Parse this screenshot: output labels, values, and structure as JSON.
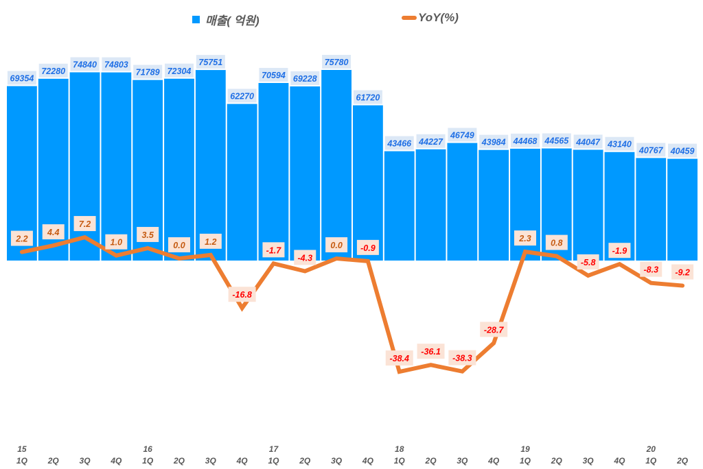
{
  "chart_data": {
    "type": "bar+line",
    "categories": [
      "15 1Q",
      "2Q",
      "3Q",
      "4Q",
      "16 1Q",
      "2Q",
      "3Q",
      "4Q",
      "17 1Q",
      "2Q",
      "3Q",
      "4Q",
      "18 1Q",
      "2Q",
      "3Q",
      "4Q",
      "19 1Q",
      "2Q",
      "3Q",
      "4Q",
      "20 1Q",
      "2Q"
    ],
    "x_years": [
      "15",
      "",
      "",
      "",
      "16",
      "",
      "",
      "",
      "17",
      "",
      "",
      "",
      "18",
      "",
      "",
      "",
      "19",
      "",
      "",
      "",
      "20",
      ""
    ],
    "x_quarters": [
      "1Q",
      "2Q",
      "3Q",
      "4Q",
      "1Q",
      "2Q",
      "3Q",
      "4Q",
      "1Q",
      "2Q",
      "3Q",
      "4Q",
      "1Q",
      "2Q",
      "3Q",
      "4Q",
      "1Q",
      "2Q",
      "3Q",
      "4Q",
      "1Q",
      "2Q"
    ],
    "series": [
      {
        "name": "매출( 억원)",
        "type": "bar",
        "color": "#0099ff",
        "values": [
          69354,
          72280,
          74840,
          74803,
          71789,
          72304,
          75751,
          62270,
          70594,
          69228,
          75780,
          61720,
          43466,
          44227,
          46749,
          43984,
          44468,
          44565,
          44047,
          43140,
          40767,
          40459
        ],
        "labels": [
          "69354",
          "72280",
          "74840",
          "74803",
          "71789",
          "72304",
          "75751",
          "62270",
          "70594",
          "69228",
          "75780",
          "61720",
          "43466",
          "44227",
          "46749",
          "43984",
          "44468",
          "44565",
          "44047",
          "43140",
          "40767",
          "40459"
        ]
      },
      {
        "name": "YoY(%)",
        "type": "line",
        "color": "#ed7d31",
        "values": [
          2.2,
          4.4,
          7.2,
          1.0,
          3.5,
          0.0,
          1.2,
          -16.8,
          -1.7,
          -4.3,
          0.0,
          -0.9,
          -38.4,
          -36.1,
          -38.3,
          -28.7,
          2.3,
          0.8,
          -5.8,
          -1.9,
          -8.3,
          -9.2
        ],
        "labels": [
          "2.2",
          "4.4",
          "7.2",
          "1.0",
          "3.5",
          "0.0",
          "1.2",
          "-16.8",
          "-1.7",
          "-4.3",
          "0.0",
          "-0.9",
          "-38.4",
          "-36.1",
          "-38.3",
          "-28.7",
          "2.3",
          "0.8",
          "-5.8",
          "-1.9",
          "-8.3",
          "-9.2"
        ]
      }
    ],
    "legend_position": "top",
    "grid": false,
    "colors": {
      "bar_label_text": "#1f6fe5",
      "bar_label_bg": "#dce8f6",
      "line_label_pos_text": "#c55a11",
      "line_label_neg_text": "#ff0000",
      "line_label_bg": "#fbe3d6",
      "axis_text": "#595959"
    }
  }
}
